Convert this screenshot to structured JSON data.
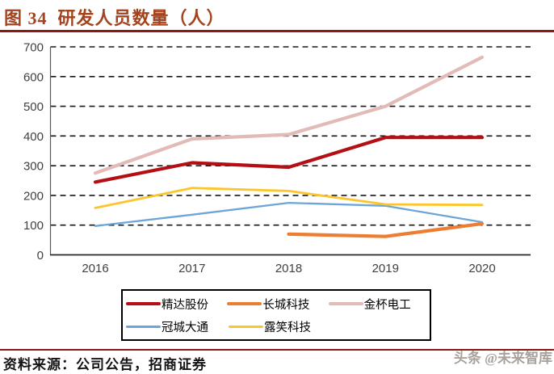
{
  "header": {
    "title": "图 34  研发人员数量（人）"
  },
  "footer": {
    "source": "资料来源：公司公告，招商证券",
    "watermark": "头条 @未来智库"
  },
  "colors": {
    "title_text": "#A3441F",
    "rule": "#8E1813",
    "axis_line": "#595959",
    "baseline": "#262626",
    "gridline": "#1a1a1a",
    "tick_text": "#3f3f3f",
    "watermark_text": "#A8A29B"
  },
  "chart_data": {
    "type": "line",
    "title": "研发人员数量（人）",
    "x": [
      "2016",
      "2017",
      "2018",
      "2019",
      "2020"
    ],
    "series": [
      {
        "name": "精达股份",
        "color": "#B30F14",
        "width": 4.2,
        "values": [
          245,
          310,
          295,
          395,
          395
        ]
      },
      {
        "name": "长城科技",
        "color": "#ED7D31",
        "width": 4.2,
        "values": [
          null,
          null,
          70,
          62,
          105
        ]
      },
      {
        "name": "金杯电工",
        "color": "#E2BBB9",
        "width": 4.2,
        "values": [
          275,
          390,
          405,
          500,
          665
        ]
      },
      {
        "name": "冠城大通",
        "color": "#6CA5D8",
        "width": 2.3,
        "values": [
          97,
          135,
          175,
          165,
          110
        ]
      },
      {
        "name": "露笑科技",
        "color": "#FCC52C",
        "width": 2.8,
        "values": [
          158,
          225,
          215,
          170,
          168
        ]
      }
    ],
    "ylim": [
      0,
      700
    ],
    "ytick_step": 100,
    "xlabel": "",
    "ylabel": "",
    "grid": "horizontal-dashed",
    "legend_position": "bottom-box",
    "legend_row_split": 3
  }
}
